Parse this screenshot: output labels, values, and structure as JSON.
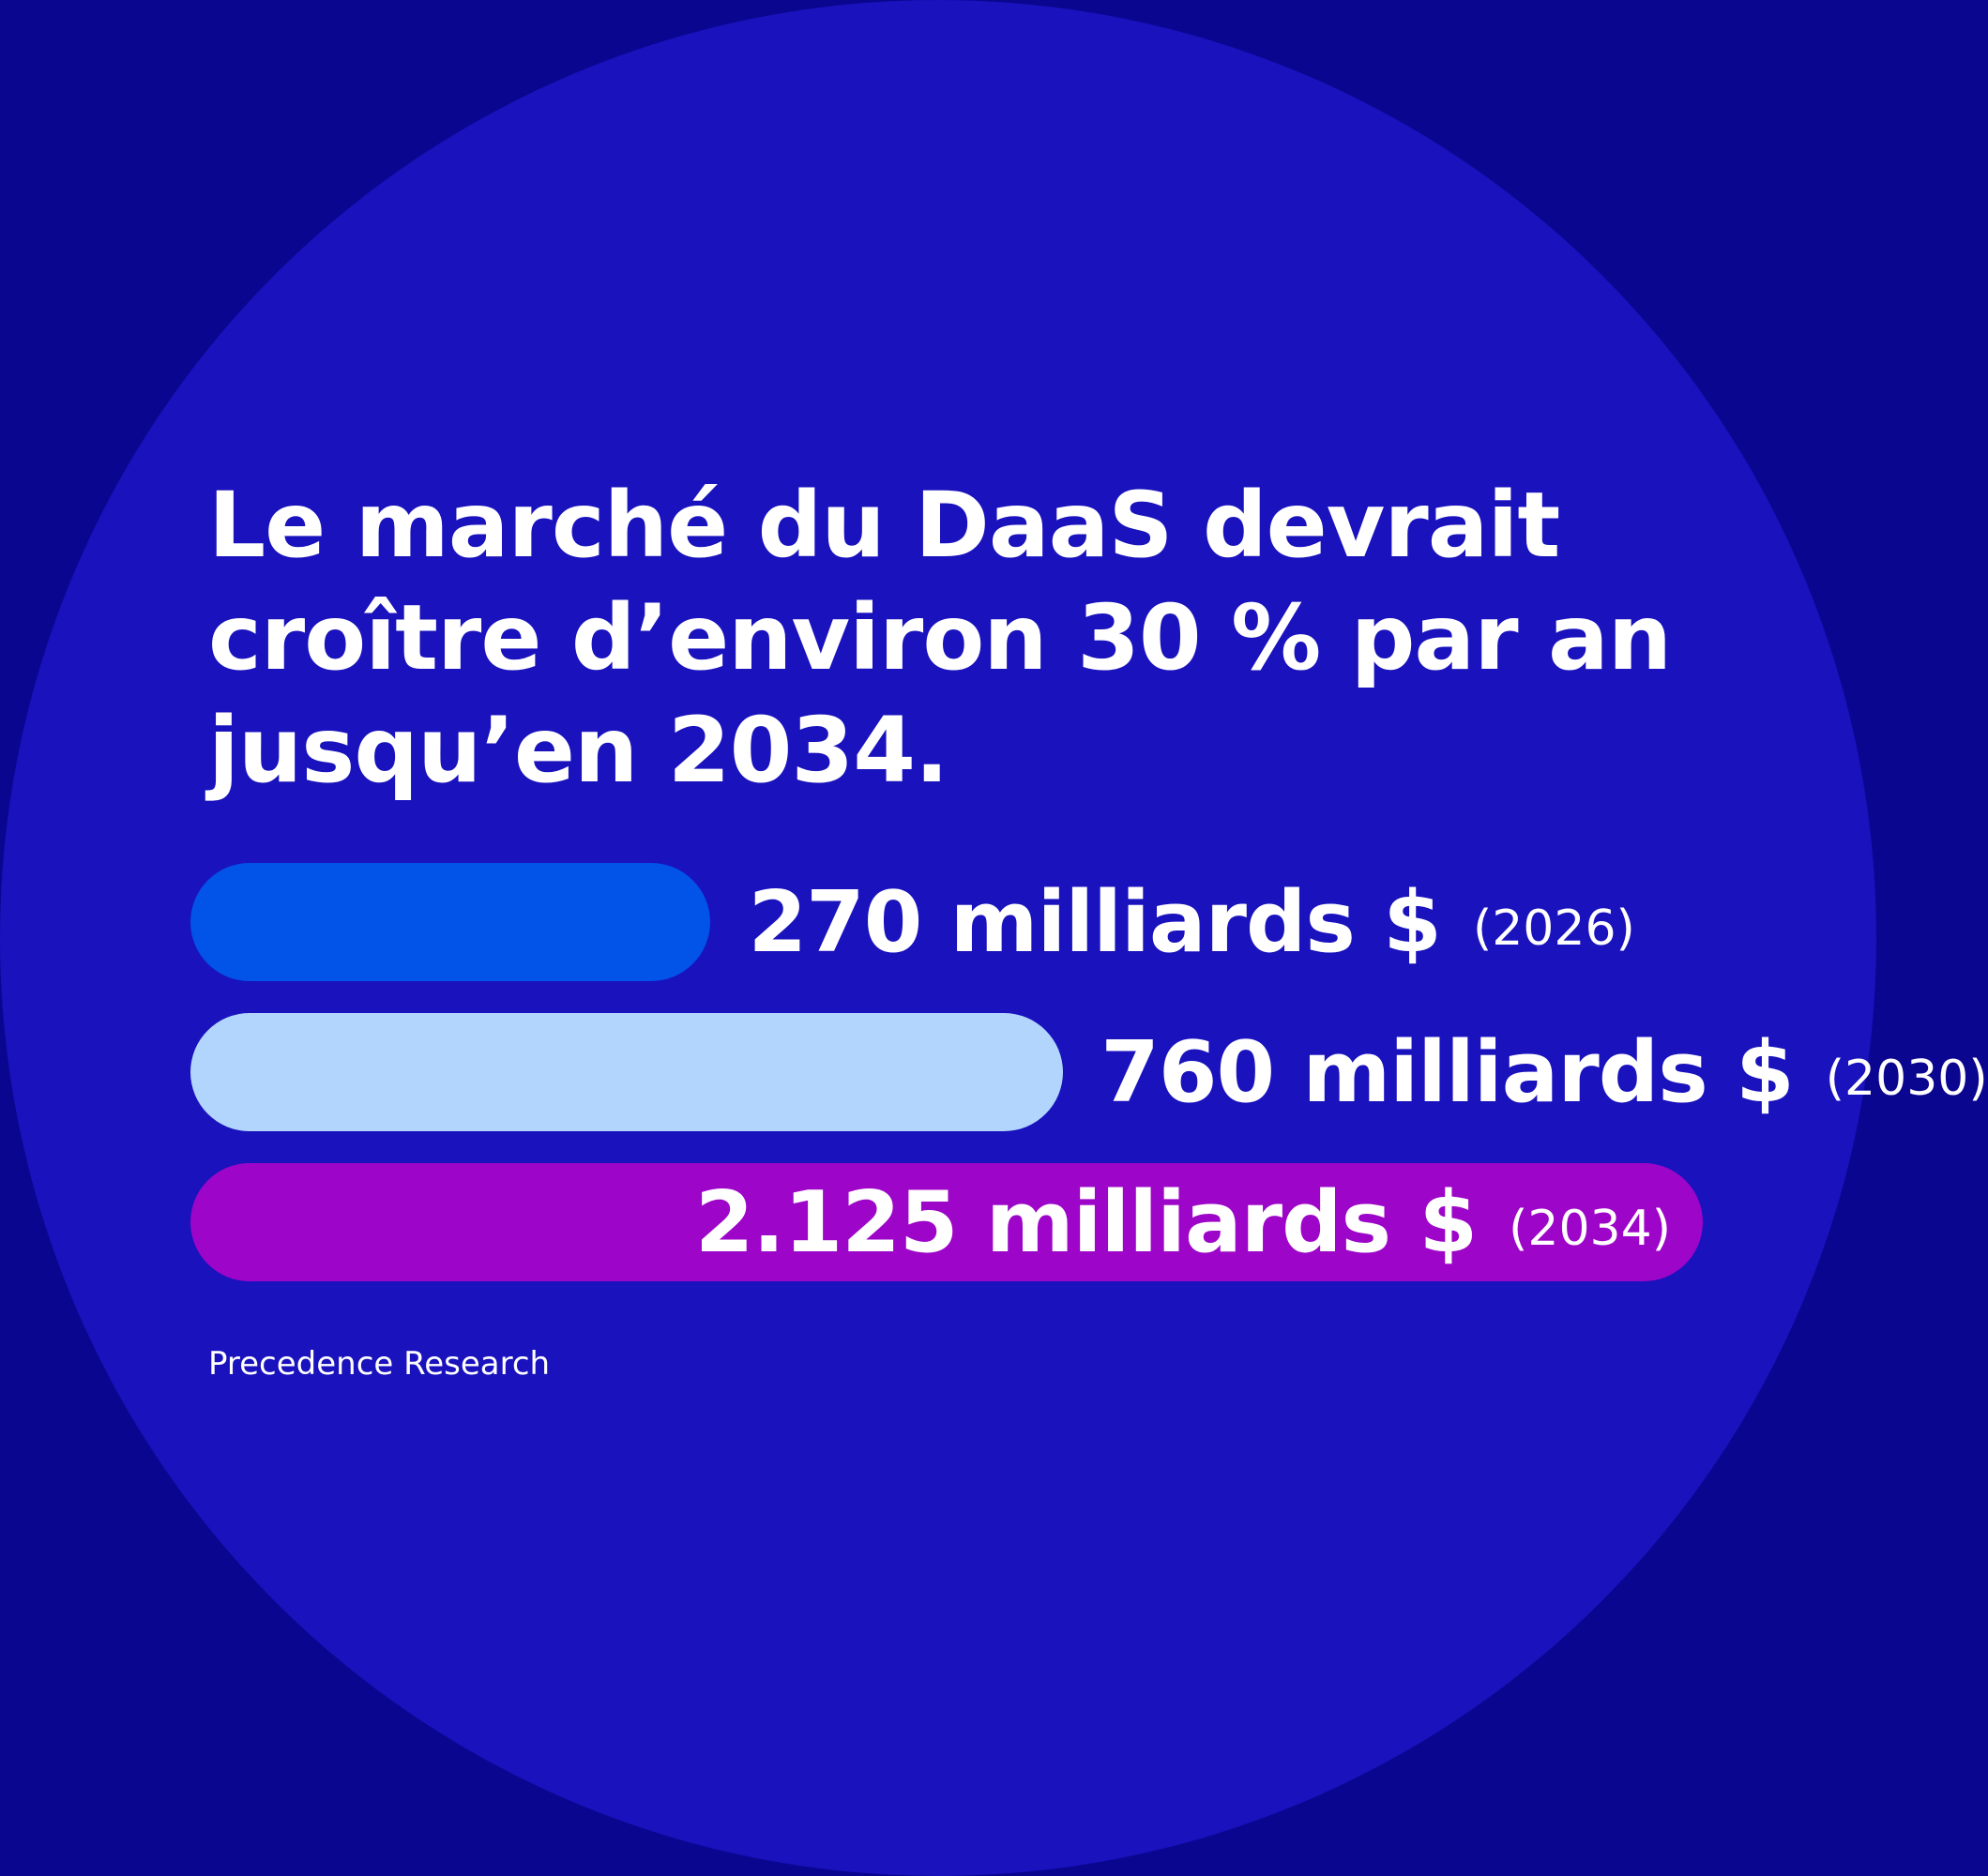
{
  "title_lines": [
    "Le marché du DaaS devrait",
    "croître d’environ 30 % par an",
    "jusqu’en 2034."
  ],
  "source": "Precedence Research",
  "colors": {
    "background": "#0b0690",
    "circle": "#1912bd",
    "text": "#ffffff"
  },
  "chart_data": {
    "type": "bar",
    "orientation": "horizontal",
    "categories": [
      "2026",
      "2030",
      "2034"
    ],
    "values": [
      270,
      760,
      2125
    ],
    "unit": "milliards $",
    "labels": [
      {
        "amount": "270 milliards $",
        "year": "(2026)"
      },
      {
        "amount": "760 milliards $",
        "year": "(2030)"
      },
      {
        "amount": "2.125 milliards $",
        "year": "(2034)"
      }
    ],
    "bar_colors": [
      "#0253e8",
      "#b2d5fe",
      "#9d05c8"
    ],
    "grid": false,
    "axes": false
  }
}
